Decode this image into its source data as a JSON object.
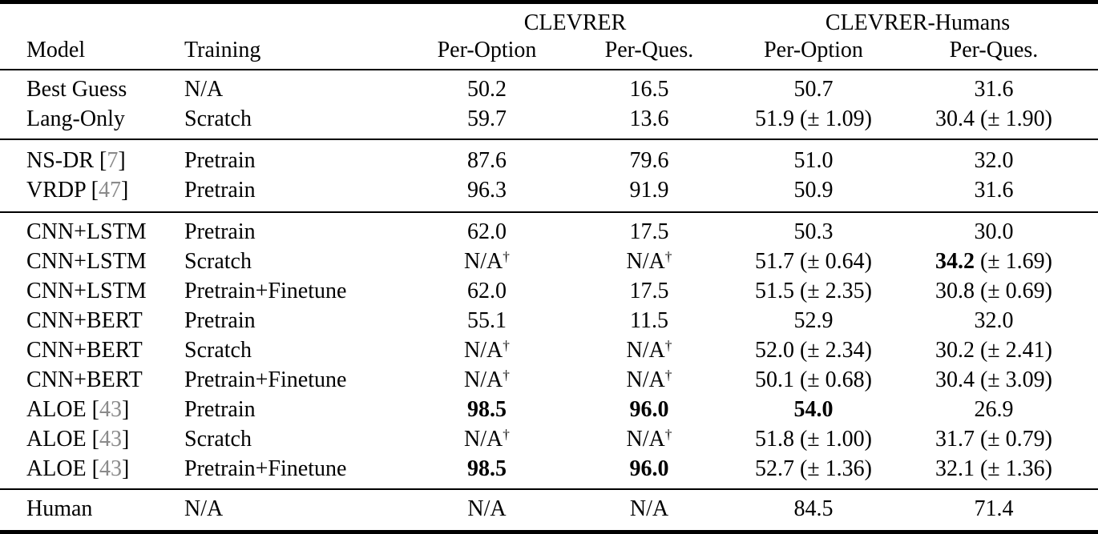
{
  "colors": {
    "background": "#ffffff",
    "text": "#000000",
    "citation_gray": "#8a8a8a",
    "rule": "#000000"
  },
  "table": {
    "col_groups": [
      {
        "label": "CLEVRER",
        "span": 2
      },
      {
        "label": "CLEVRER-Humans",
        "span": 2
      }
    ],
    "headers": [
      "Model",
      "Training",
      "Per-Option",
      "Per-Ques.",
      "Per-Option",
      "Per-Ques."
    ],
    "footnote_symbol": "†",
    "pm_symbol": "±",
    "na_label": "N/A",
    "groups": [
      {
        "rows": [
          {
            "model": {
              "name": "Best Guess"
            },
            "training": "N/A",
            "cells": [
              {
                "v": "50.2"
              },
              {
                "v": "16.5"
              },
              {
                "v": "50.7"
              },
              {
                "v": "31.6"
              }
            ]
          },
          {
            "model": {
              "name": "Lang-Only"
            },
            "training": "Scratch",
            "cells": [
              {
                "v": "59.7"
              },
              {
                "v": "13.6"
              },
              {
                "v": "51.9",
                "pm": "1.09"
              },
              {
                "v": "30.4",
                "pm": "1.90"
              }
            ]
          }
        ]
      },
      {
        "rows": [
          {
            "model": {
              "name": "NS-DR",
              "ref": "7"
            },
            "training": "Pretrain",
            "cells": [
              {
                "v": "87.6"
              },
              {
                "v": "79.6"
              },
              {
                "v": "51.0"
              },
              {
                "v": "32.0"
              }
            ]
          },
          {
            "model": {
              "name": "VRDP",
              "ref": "47"
            },
            "training": "Pretrain",
            "cells": [
              {
                "v": "96.3"
              },
              {
                "v": "91.9"
              },
              {
                "v": "50.9"
              },
              {
                "v": "31.6"
              }
            ]
          }
        ]
      },
      {
        "rows": [
          {
            "model": {
              "name": "CNN+LSTM"
            },
            "training": "Pretrain",
            "cells": [
              {
                "v": "62.0"
              },
              {
                "v": "17.5"
              },
              {
                "v": "50.3"
              },
              {
                "v": "30.0"
              }
            ]
          },
          {
            "model": {
              "name": "CNN+LSTM"
            },
            "training": "Scratch",
            "cells": [
              {
                "v": "N/A",
                "dagger": true
              },
              {
                "v": "N/A",
                "dagger": true
              },
              {
                "v": "51.7",
                "pm": "0.64"
              },
              {
                "v": "34.2",
                "pm": "1.69",
                "bold": true
              }
            ]
          },
          {
            "model": {
              "name": "CNN+LSTM"
            },
            "training": "Pretrain+Finetune",
            "cells": [
              {
                "v": "62.0"
              },
              {
                "v": "17.5"
              },
              {
                "v": "51.5",
                "pm": "2.35"
              },
              {
                "v": "30.8",
                "pm": "0.69"
              }
            ]
          },
          {
            "model": {
              "name": "CNN+BERT"
            },
            "training": "Pretrain",
            "cells": [
              {
                "v": "55.1"
              },
              {
                "v": "11.5"
              },
              {
                "v": "52.9"
              },
              {
                "v": "32.0"
              }
            ]
          },
          {
            "model": {
              "name": "CNN+BERT"
            },
            "training": "Scratch",
            "cells": [
              {
                "v": "N/A",
                "dagger": true
              },
              {
                "v": "N/A",
                "dagger": true
              },
              {
                "v": "52.0",
                "pm": "2.34"
              },
              {
                "v": "30.2",
                "pm": "2.41"
              }
            ]
          },
          {
            "model": {
              "name": "CNN+BERT"
            },
            "training": "Pretrain+Finetune",
            "cells": [
              {
                "v": "N/A",
                "dagger": true
              },
              {
                "v": "N/A",
                "dagger": true
              },
              {
                "v": "50.1",
                "pm": "0.68"
              },
              {
                "v": "30.4",
                "pm": "3.09"
              }
            ]
          },
          {
            "model": {
              "name": "ALOE",
              "ref": "43"
            },
            "training": "Pretrain",
            "cells": [
              {
                "v": "98.5",
                "bold": true
              },
              {
                "v": "96.0",
                "bold": true
              },
              {
                "v": "54.0",
                "bold": true
              },
              {
                "v": "26.9"
              }
            ]
          },
          {
            "model": {
              "name": "ALOE",
              "ref": "43"
            },
            "training": "Scratch",
            "cells": [
              {
                "v": "N/A",
                "dagger": true
              },
              {
                "v": "N/A",
                "dagger": true
              },
              {
                "v": "51.8",
                "pm": "1.00"
              },
              {
                "v": "31.7",
                "pm": "0.79"
              }
            ]
          },
          {
            "model": {
              "name": "ALOE",
              "ref": "43"
            },
            "training": "Pretrain+Finetune",
            "cells": [
              {
                "v": "98.5",
                "bold": true
              },
              {
                "v": "96.0",
                "bold": true
              },
              {
                "v": "52.7",
                "pm": "1.36"
              },
              {
                "v": "32.1",
                "pm": "1.36"
              }
            ]
          }
        ]
      },
      {
        "rows": [
          {
            "model": {
              "name": "Human"
            },
            "training": "N/A",
            "cells": [
              {
                "v": "N/A"
              },
              {
                "v": "N/A"
              },
              {
                "v": "84.5"
              },
              {
                "v": "71.4"
              }
            ]
          }
        ]
      }
    ]
  }
}
